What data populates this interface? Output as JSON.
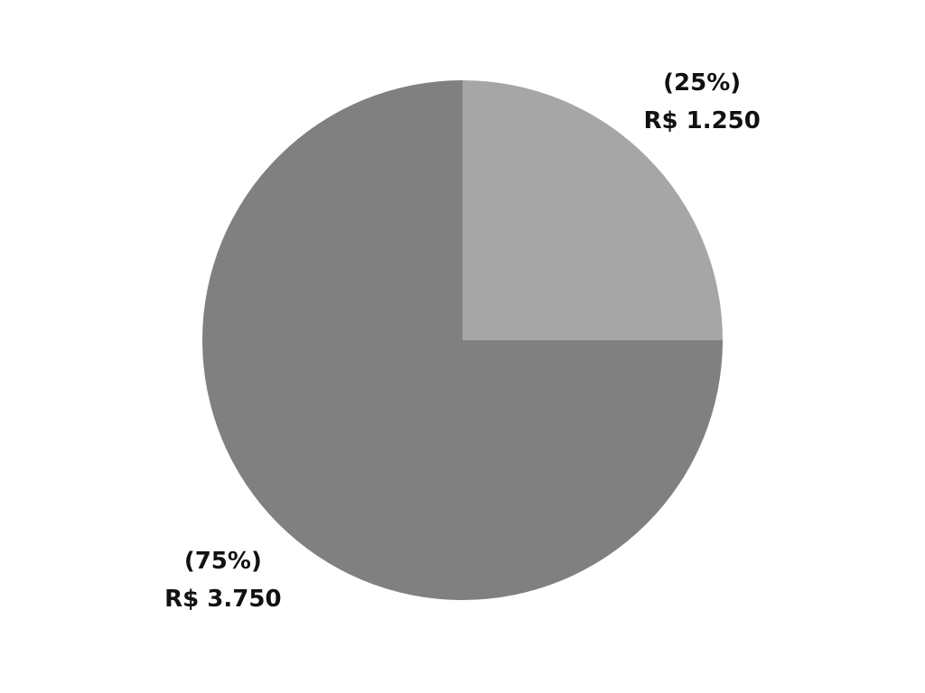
{
  "chart_data": {
    "type": "pie",
    "title": "",
    "start_angle_deg": 0,
    "direction": "clockwise",
    "slices": [
      {
        "value": 1250,
        "percent_label": "(25%)",
        "value_label": "R$ 1.250",
        "color": "#a6a6a6"
      },
      {
        "value": 3750,
        "percent_label": "(75%)",
        "value_label": "R$ 3.750",
        "color": "#808080"
      }
    ]
  }
}
